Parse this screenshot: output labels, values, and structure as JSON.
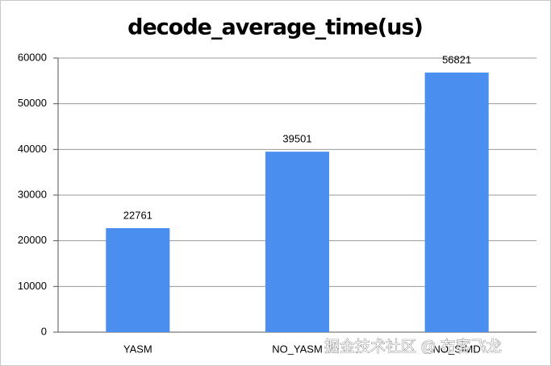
{
  "chart_data": {
    "type": "bar",
    "title": "decode_average_time(us)",
    "categories": [
      "YASM",
      "NO_YASM",
      "NO_SIMD"
    ],
    "values": [
      22761,
      39501,
      56821
    ],
    "color": "#4a8fef",
    "ylim": [
      0,
      60000
    ],
    "yticks": [
      0,
      10000,
      20000,
      30000,
      40000,
      50000,
      60000
    ],
    "grid": true,
    "watermark": "掘金技术社区 @ 布客飞龙"
  }
}
